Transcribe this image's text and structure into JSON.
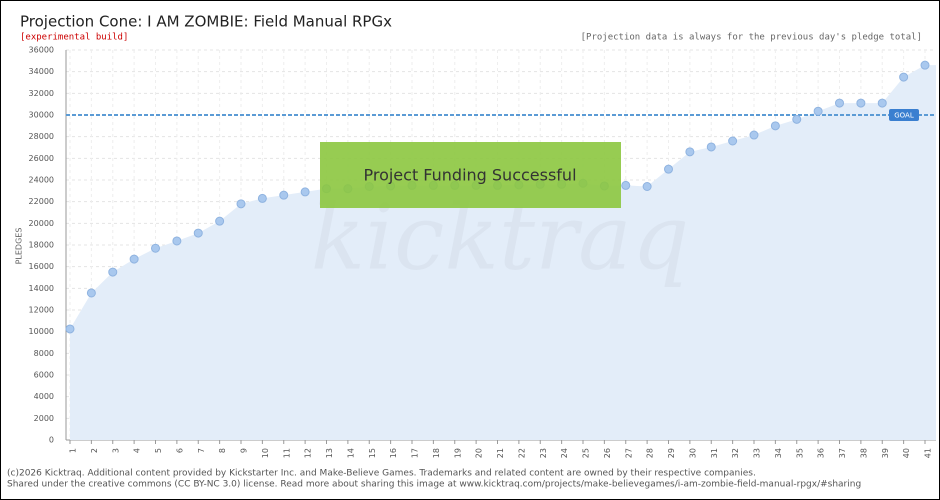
{
  "chart_data": {
    "type": "area-points",
    "title": "Projection Cone: I AM ZOMBIE: Field Manual RPGx",
    "subtitle": "[experimental build]",
    "note": "[Projection data is always for the previous day's pledge total]",
    "y_label": "PLEDGES",
    "banner": "Project Funding Successful",
    "watermark": "kicktraq",
    "footer": [
      "(c)2026 Kicktraq. Additional content provided by Kickstarter Inc. and Make-Believe Games. Trademarks and related content are owned by their respective companies.",
      "Shared under the creative commons (CC BY-NC 3.0) license. Read more about sharing this image at www.kicktraq.com/projects/make-believegames/i-am-zombie-field-manual-rpgx/#sharing"
    ],
    "goal": 30000,
    "goal_label": "GOAL",
    "categories": [
      "1",
      "2",
      "3",
      "4",
      "5",
      "6",
      "7",
      "8",
      "9",
      "10",
      "11",
      "12",
      "13",
      "14",
      "15",
      "16",
      "17",
      "18",
      "19",
      "20",
      "21",
      "22",
      "23",
      "24",
      "25",
      "26",
      "27",
      "28",
      "29",
      "30",
      "31",
      "32",
      "33",
      "34",
      "35",
      "36",
      "37",
      "38",
      "39",
      "40",
      "41"
    ],
    "values": [
      10250,
      13570,
      15500,
      16700,
      17700,
      18370,
      19100,
      20200,
      21800,
      22300,
      22600,
      22900,
      23200,
      23200,
      23400,
      23450,
      23500,
      23500,
      23500,
      23500,
      23500,
      23550,
      23600,
      23600,
      23700,
      23450,
      23500,
      23400,
      25000,
      26600,
      27050,
      27600,
      28150,
      29000,
      29600,
      30350,
      31100,
      31100,
      31100,
      33500,
      34600
    ],
    "color": "#a9c8ee",
    "area_color": "#e3edf9",
    "goal_color": "#5b9bd5",
    "ylim": [
      0,
      36000
    ],
    "yticks": [
      0,
      2000,
      4000,
      6000,
      8000,
      10000,
      12000,
      14000,
      16000,
      18000,
      20000,
      22000,
      24000,
      26000,
      28000,
      30000,
      32000,
      34000,
      36000
    ],
    "grid": true
  }
}
